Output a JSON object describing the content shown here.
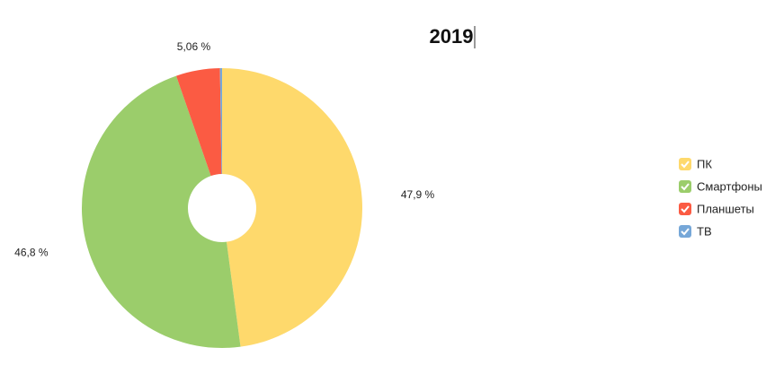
{
  "chart_data": {
    "type": "donut",
    "title": "2019",
    "categories": [
      "ПК",
      "Смартфоны",
      "Планшеты",
      "ТВ"
    ],
    "values": [
      47.9,
      46.8,
      5.06,
      0.24
    ],
    "value_labels": [
      "47,9 %",
      "46,8 %",
      "5,06 %",
      null
    ],
    "colors": [
      "#fed96c",
      "#9bcd6b",
      "#fb5b43",
      "#76a7d8"
    ],
    "legend": "right"
  }
}
